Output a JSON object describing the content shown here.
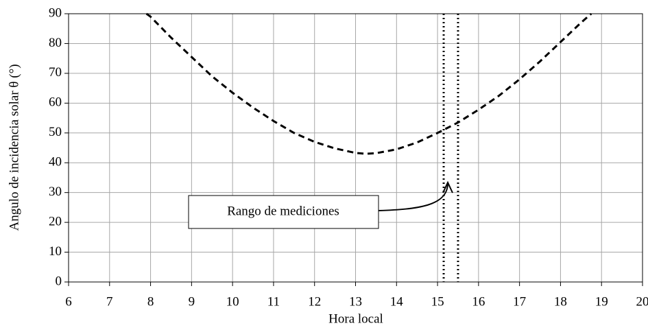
{
  "chart_data": {
    "type": "line",
    "x": [
      7.9,
      8,
      8.5,
      9,
      9.5,
      10,
      10.5,
      11,
      11.5,
      12,
      12.5,
      13,
      13.25,
      13.5,
      14,
      14.5,
      15,
      15.5,
      16,
      16.5,
      17,
      17.5,
      18,
      18.5,
      18.75
    ],
    "values": [
      90,
      89,
      82,
      75.5,
      69,
      63.5,
      58.5,
      54,
      50,
      47,
      44.8,
      43.3,
      43,
      43.2,
      44.5,
      46.8,
      50,
      53.5,
      57.8,
      62.5,
      68,
      74,
      80.5,
      87,
      90
    ],
    "color": "#000000",
    "line_style": "dashed",
    "xlabel": "Hora local",
    "ylabel": "Angulo de incidencia solar θ (°)",
    "xlim": [
      6,
      20
    ],
    "xticks": [
      6,
      7,
      8,
      9,
      10,
      11,
      12,
      13,
      14,
      15,
      16,
      17,
      18,
      19,
      20
    ],
    "ylim": [
      0,
      90
    ],
    "yticks": [
      0,
      10,
      20,
      30,
      40,
      50,
      60,
      70,
      80,
      90
    ],
    "grid": true,
    "vlines": [
      15.15,
      15.5
    ],
    "annotation": {
      "text": "Rango de mediciones"
    }
  }
}
